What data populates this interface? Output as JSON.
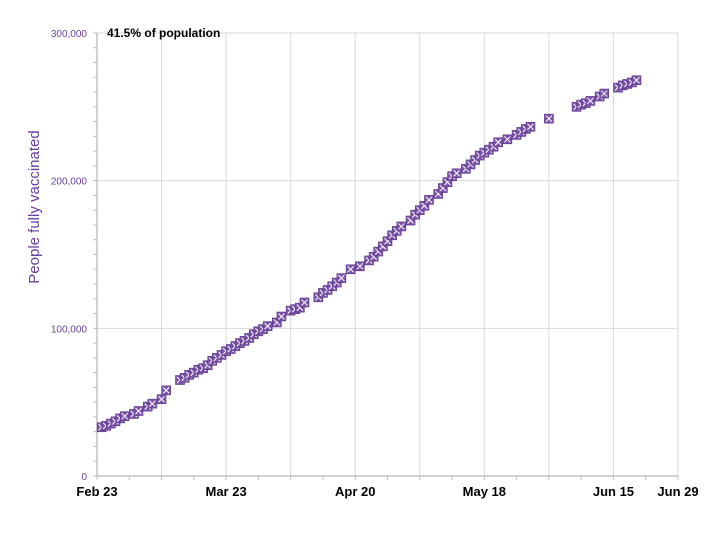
{
  "chart_data": {
    "type": "scatter",
    "title": "",
    "ylabel": "People fully vaccinated",
    "xlabel": "",
    "annotation": "41.5% of population",
    "x_start": "Feb 23",
    "x_range_days": [
      0,
      126
    ],
    "ylim": [
      0,
      300000
    ],
    "yticks": [
      {
        "value": 0,
        "label": "0"
      },
      {
        "value": 100000,
        "label": "100,000"
      },
      {
        "value": 200000,
        "label": "200,000"
      },
      {
        "value": 300000,
        "label": "300,000"
      }
    ],
    "xticks": [
      {
        "day": 0,
        "label": "Feb 23"
      },
      {
        "day": 28,
        "label": "Mar 23"
      },
      {
        "day": 56,
        "label": "Apr 20"
      },
      {
        "day": 84,
        "label": "May 18"
      },
      {
        "day": 112,
        "label": "Jun 15"
      },
      {
        "day": 126,
        "label": "Jun 29"
      }
    ],
    "grid": true,
    "marker_color": "#7b52ab",
    "series": [
      {
        "name": "",
        "points": [
          [
            1,
            33000
          ],
          [
            2,
            34000
          ],
          [
            3,
            35500
          ],
          [
            4,
            37000
          ],
          [
            5,
            39000
          ],
          [
            6,
            40500
          ],
          [
            8,
            42000
          ],
          [
            9,
            44000
          ],
          [
            11,
            47000
          ],
          [
            12,
            49000
          ],
          [
            14,
            52000
          ],
          [
            15,
            58000
          ],
          [
            18,
            65000
          ],
          [
            19,
            66500
          ],
          [
            20,
            68500
          ],
          [
            21,
            70000
          ],
          [
            22,
            72000
          ],
          [
            23,
            73000
          ],
          [
            24,
            75000
          ],
          [
            25,
            78000
          ],
          [
            26,
            80000
          ],
          [
            27,
            82000
          ],
          [
            28,
            84500
          ],
          [
            29,
            86000
          ],
          [
            30,
            88000
          ],
          [
            31,
            90000
          ],
          [
            32,
            91500
          ],
          [
            33,
            93500
          ],
          [
            34,
            96000
          ],
          [
            35,
            98000
          ],
          [
            36,
            99500
          ],
          [
            37,
            101500
          ],
          [
            39,
            104000
          ],
          [
            40,
            108000
          ],
          [
            42,
            112000
          ],
          [
            43,
            113000
          ],
          [
            44,
            114000
          ],
          [
            45,
            117500
          ],
          [
            48,
            121000
          ],
          [
            49,
            124000
          ],
          [
            50,
            126000
          ],
          [
            51,
            128500
          ],
          [
            52,
            131000
          ],
          [
            53,
            134000
          ],
          [
            55,
            140000
          ],
          [
            57,
            142000
          ],
          [
            59,
            146000
          ],
          [
            60,
            148500
          ],
          [
            61,
            152000
          ],
          [
            62,
            155500
          ],
          [
            63,
            159000
          ],
          [
            64,
            163000
          ],
          [
            65,
            166000
          ],
          [
            66,
            169000
          ],
          [
            68,
            173000
          ],
          [
            69,
            177000
          ],
          [
            70,
            180000
          ],
          [
            71,
            183000
          ],
          [
            72,
            187000
          ],
          [
            74,
            191000
          ],
          [
            75,
            195000
          ],
          [
            76,
            199000
          ],
          [
            77,
            203000
          ],
          [
            78,
            205000
          ],
          [
            80,
            208000
          ],
          [
            81,
            211000
          ],
          [
            82,
            214000
          ],
          [
            83,
            217000
          ],
          [
            84,
            219000
          ],
          [
            85,
            221000
          ],
          [
            86,
            223000
          ],
          [
            87,
            226000
          ],
          [
            89,
            228000
          ],
          [
            91,
            231000
          ],
          [
            92,
            233000
          ],
          [
            93,
            235000
          ],
          [
            94,
            236500
          ],
          [
            98,
            242000
          ],
          [
            104,
            250000
          ],
          [
            105,
            251500
          ],
          [
            106,
            252500
          ],
          [
            107,
            254000
          ],
          [
            109,
            257000
          ],
          [
            110,
            259000
          ],
          [
            113,
            263000
          ],
          [
            114,
            264500
          ],
          [
            115,
            265500
          ],
          [
            116,
            266500
          ],
          [
            117,
            268000
          ]
        ]
      }
    ]
  }
}
